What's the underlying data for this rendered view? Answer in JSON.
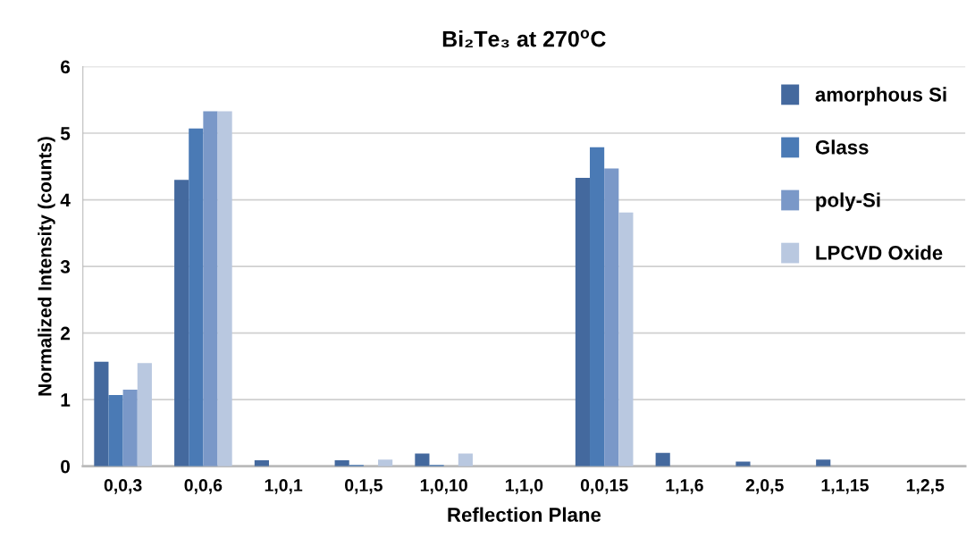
{
  "chart_data": {
    "type": "bar",
    "title": "Bi₂Te₃ at 270$^{o}$C",
    "xlabel": "Reflection Plane",
    "ylabel": "Normalized Intensity (counts)",
    "categories": [
      "0,0,3",
      "0,0,6",
      "1,0,1",
      "0,1,5",
      "1,0,10",
      "1,1,0",
      "0,0,15",
      "1,1,6",
      "2,0,5",
      "1,1,15",
      "1,2,5"
    ],
    "series": [
      {
        "name": "amorphous Si",
        "color": "#44699e",
        "values": [
          1.57,
          4.3,
          0.09,
          0.09,
          0.19,
          0,
          4.33,
          0.2,
          0.07,
          0.1,
          0
        ]
      },
      {
        "name": "Glass",
        "color": "#4a7ab5",
        "values": [
          1.07,
          5.07,
          0,
          0.02,
          0.02,
          0,
          4.79,
          0,
          0,
          0,
          0
        ]
      },
      {
        "name": "poly-Si",
        "color": "#7a98c8",
        "values": [
          1.15,
          5.33,
          0,
          0,
          0,
          0,
          4.47,
          0,
          0,
          0,
          0
        ]
      },
      {
        "name": "LPCVD Oxide",
        "color": "#b9c8e0",
        "values": [
          1.55,
          5.33,
          0,
          0.1,
          0.19,
          0,
          3.81,
          0,
          0,
          0,
          0
        ]
      }
    ],
    "ylim": [
      0,
      6
    ],
    "yticks": [
      0,
      1,
      2,
      3,
      4,
      5,
      6
    ],
    "grid": "y",
    "legend": "top right"
  }
}
